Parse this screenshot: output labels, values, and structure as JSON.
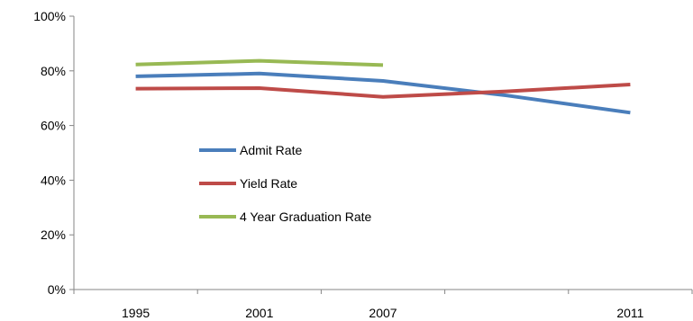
{
  "chart_data": {
    "type": "line",
    "title": "",
    "xlabel": "",
    "ylabel": "",
    "categories": [
      "1995",
      "2001",
      "2007",
      "",
      "2011"
    ],
    "ylim": [
      0,
      100
    ],
    "yticks": [
      0,
      20,
      40,
      60,
      80,
      100
    ],
    "ytick_labels": [
      "0%",
      "20%",
      "40%",
      "60%",
      "80%",
      "100%"
    ],
    "grid": false,
    "legend_position": "inside-left",
    "series": [
      {
        "name": "Admit Rate",
        "color": "#4a7ebb",
        "values": [
          78,
          79,
          76.3,
          71,
          64.7
        ]
      },
      {
        "name": "Yield Rate",
        "color": "#be4b48",
        "values": [
          73.5,
          73.7,
          70.5,
          72.5,
          75
        ]
      },
      {
        "name": "4 Year Graduation Rate",
        "color": "#98b954",
        "values": [
          82.3,
          83.7,
          82.1,
          null,
          null
        ]
      }
    ]
  }
}
